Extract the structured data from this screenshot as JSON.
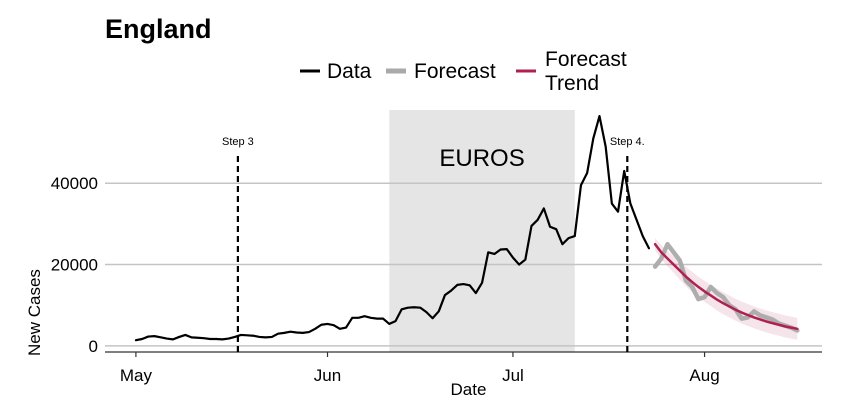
{
  "chart_data": {
    "type": "line",
    "title": "England",
    "xlabel": "Date",
    "ylabel": "New Cases",
    "x_ticks": [
      {
        "label": "May",
        "day": 0
      },
      {
        "label": "Jun",
        "day": 31
      },
      {
        "label": "Jul",
        "day": 61
      },
      {
        "label": "Aug",
        "day": 92
      }
    ],
    "y_ticks": [
      {
        "label": "0",
        "value": 0
      },
      {
        "label": "20000",
        "value": 20000
      },
      {
        "label": "40000",
        "value": 40000
      }
    ],
    "xlim": [
      -5,
      111
    ],
    "ylim": [
      -1500,
      58000
    ],
    "grid": "horizontal",
    "legend": {
      "position": "top",
      "entries": [
        {
          "label": "Data",
          "color": "#000000"
        },
        {
          "label": "Forecast",
          "color": "#aaaaaa"
        },
        {
          "label_lines": [
            "Forecast",
            "Trend"
          ],
          "color": "#b0204f"
        }
      ]
    },
    "shaded_regions": [
      {
        "label": "EUROS",
        "x_start": 41,
        "x_end": 71,
        "color": "#e5e5e5"
      }
    ],
    "vlines": [
      {
        "label": "Step 3",
        "x": 16.5
      },
      {
        "label": "Step 4.",
        "x": 79.5
      }
    ],
    "series": [
      {
        "name": "Data",
        "color": "#000000",
        "x": [
          0,
          1,
          2,
          3,
          4,
          5,
          6,
          7,
          8,
          9,
          10,
          11,
          12,
          13,
          14,
          15,
          16,
          17,
          18,
          19,
          20,
          21,
          22,
          23,
          24,
          25,
          26,
          27,
          28,
          29,
          30,
          31,
          32,
          33,
          34,
          35,
          36,
          37,
          38,
          39,
          40,
          41,
          42,
          43,
          44,
          45,
          46,
          47,
          48,
          49,
          50,
          51,
          52,
          53,
          54,
          55,
          56,
          57,
          58,
          59,
          60,
          61,
          62,
          63,
          64,
          65,
          66,
          67,
          68,
          69,
          70,
          71,
          72,
          73,
          74,
          75,
          76,
          77,
          78,
          79,
          80,
          81,
          82,
          83
        ],
        "y": [
          1400,
          1700,
          2300,
          2400,
          2100,
          1800,
          1600,
          2200,
          2700,
          2100,
          2000,
          1900,
          1700,
          1700,
          1600,
          1800,
          2200,
          2700,
          2600,
          2500,
          2200,
          2100,
          2200,
          3000,
          3200,
          3500,
          3300,
          3200,
          3400,
          4200,
          5200,
          5400,
          5100,
          4200,
          4500,
          6900,
          6900,
          7300,
          6900,
          6700,
          6700,
          5400,
          6100,
          9000,
          9400,
          9500,
          9400,
          8300,
          6800,
          8500,
          12500,
          13600,
          15000,
          15200,
          14900,
          13000,
          15500,
          23000,
          22600,
          23700,
          23800,
          21700,
          20000,
          21200,
          29500,
          31000,
          33800,
          29300,
          28700,
          25000,
          26500,
          27000,
          39500,
          42500,
          51000,
          56500,
          49000,
          35000,
          33000,
          43000,
          35000,
          31000,
          27000,
          24000
        ]
      },
      {
        "name": "Forecast",
        "color": "#aaaaaa",
        "x": [
          84,
          85,
          86,
          87,
          88,
          89,
          90,
          91,
          92,
          93,
          94,
          95,
          96,
          97,
          98,
          99,
          100,
          101,
          102,
          103,
          104,
          105,
          106,
          107
        ],
        "y": [
          19500,
          21500,
          25000,
          23000,
          21000,
          16000,
          14500,
          11500,
          12000,
          14500,
          13000,
          12000,
          10000,
          9000,
          6700,
          7000,
          8500,
          7500,
          7000,
          6500,
          5500,
          5000,
          4500,
          3800
        ]
      },
      {
        "name": "Forecast Trend",
        "color": "#b0204f",
        "x": [
          84,
          85,
          86,
          87,
          88,
          89,
          90,
          91,
          92,
          93,
          94,
          95,
          96,
          97,
          98,
          99,
          100,
          101,
          102,
          103,
          104,
          105,
          106,
          107
        ],
        "y": [
          25000,
          23000,
          21500,
          20000,
          18500,
          17000,
          15700,
          14500,
          13400,
          12400,
          11400,
          10500,
          9700,
          8900,
          8200,
          7600,
          7000,
          6500,
          6000,
          5600,
          5200,
          4800,
          4500,
          4200
        ],
        "band_upper": [
          26500,
          24800,
          23400,
          22000,
          20700,
          19400,
          18200,
          17000,
          16000,
          15000,
          14100,
          13200,
          12400,
          11600,
          10900,
          10300,
          9700,
          9200,
          8700,
          8300,
          7900,
          7500,
          7200,
          6900
        ],
        "band_lower": [
          23500,
          21200,
          19600,
          18000,
          16300,
          14600,
          13200,
          12000,
          10800,
          9800,
          8700,
          7800,
          7000,
          6200,
          5500,
          4900,
          4300,
          3800,
          3300,
          2900,
          2500,
          2100,
          1800,
          1500
        ]
      }
    ]
  }
}
